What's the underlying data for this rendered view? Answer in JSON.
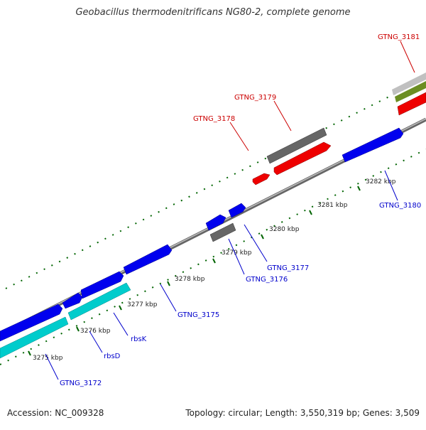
{
  "title": "Geobacillus thermodenitrificans NG80-2, complete genome",
  "footer": {
    "accession": "Accession: NC_009328",
    "summary": "Topology: circular; Length: 3,550,319 bp; Genes: 3,509"
  },
  "colors": {
    "forward_gene": "#0000ee",
    "reverse_gene": "#ee0000",
    "rna_gene": "#00cccc",
    "pseudo_gene": "#666666",
    "backbone": "#888888",
    "tick": "#006400"
  },
  "scale": {
    "ticks": [
      {
        "label": "3275 kbp"
      },
      {
        "label": "3276 kbp"
      },
      {
        "label": "3277 kbp"
      },
      {
        "label": "3278 kbp"
      },
      {
        "label": "3279 kbp"
      },
      {
        "label": "3280 kbp"
      },
      {
        "label": "3281 kbp"
      },
      {
        "label": "3282 kbp"
      }
    ]
  },
  "genes": {
    "forward_labels": [
      {
        "label": "GTNG_3172"
      },
      {
        "label": "rbsD"
      },
      {
        "label": "rbsK"
      },
      {
        "label": "GTNG_3175"
      },
      {
        "label": "GTNG_3176"
      },
      {
        "label": "GTNG_3177"
      },
      {
        "label": "GTNG_3180"
      }
    ],
    "reverse_labels": [
      {
        "label": "GTNG_3178"
      },
      {
        "label": "GTNG_3179"
      },
      {
        "label": "GTNG_3181"
      }
    ]
  }
}
